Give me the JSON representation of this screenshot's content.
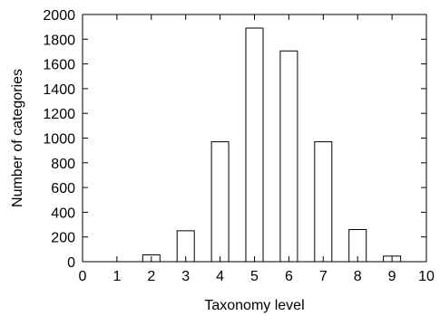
{
  "chart_data": {
    "type": "bar",
    "title": "",
    "xlabel": "Taxonomy level",
    "ylabel": "Number of categories",
    "x": [
      1,
      2,
      3,
      4,
      5,
      6,
      7,
      8,
      9
    ],
    "values": [
      0,
      55,
      250,
      970,
      1890,
      1705,
      970,
      260,
      45
    ],
    "xlim": [
      0,
      10
    ],
    "ylim": [
      0,
      2000
    ],
    "x_ticks": [
      "0",
      "1",
      "2",
      "3",
      "4",
      "5",
      "6",
      "7",
      "8",
      "9",
      "10"
    ],
    "y_ticks": [
      "0",
      "200",
      "400",
      "600",
      "800",
      "1000",
      "1200",
      "1400",
      "1600",
      "1800",
      "2000"
    ],
    "grid": false,
    "legend": "none",
    "bar_fill": "#ffffff",
    "bar_stroke": "#000000"
  }
}
